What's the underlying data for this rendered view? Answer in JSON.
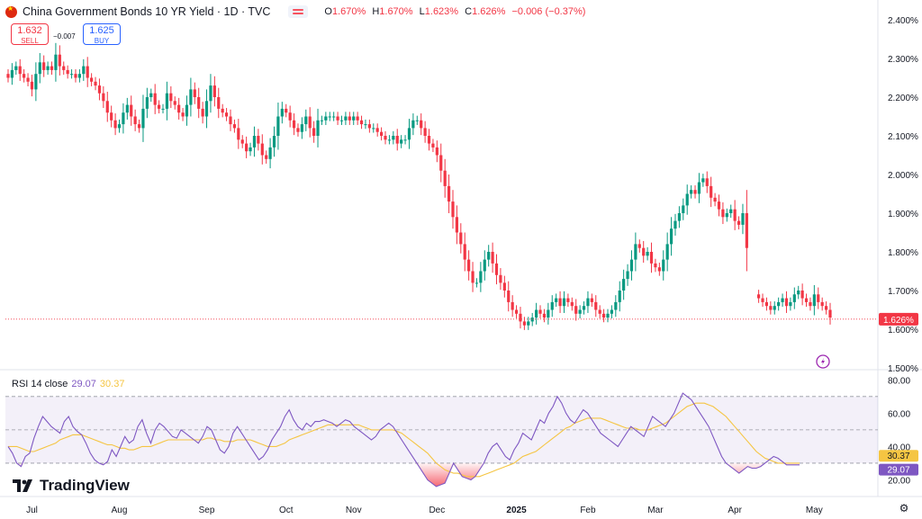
{
  "header": {
    "title": "China Government Bonds 10 YR Yield · 1D · TVC",
    "open_label": "O",
    "open": "1.670%",
    "high_label": "H",
    "high": "1.670%",
    "low_label": "L",
    "low": "1.623%",
    "close_label": "C",
    "close": "1.626%",
    "change": "−0.006 (−0.37%)"
  },
  "trade": {
    "sell_price": "1.632",
    "sell_label": "SELL",
    "buy_price": "1.625",
    "buy_label": "BUY",
    "spread": "−0.007"
  },
  "rsi_legend": {
    "label": "RSI 14 close",
    "rsi": "29.07",
    "ma": "30.37"
  },
  "branding": {
    "name": "TradingView"
  },
  "colors": {
    "up": "#089981",
    "down": "#f23645",
    "rsi": "#7e57c2",
    "rsi_ma": "#f5c542",
    "price_line": "#f23645"
  },
  "chart_data": [
    {
      "type": "candlestick",
      "title": "China Government Bonds 10 YR Yield",
      "ylim": [
        1.5,
        2.4
      ],
      "y_ticks": [
        "2.400%",
        "2.300%",
        "2.200%",
        "2.100%",
        "2.000%",
        "1.900%",
        "1.800%",
        "1.700%",
        "1.600%",
        "1.500%"
      ],
      "x_ticks": [
        {
          "label": "Jul",
          "index": 6
        },
        {
          "label": "Aug",
          "index": 28
        },
        {
          "label": "Sep",
          "index": 50
        },
        {
          "label": "Oct",
          "index": 70
        },
        {
          "label": "Nov",
          "index": 87
        },
        {
          "label": "Dec",
          "index": 108
        },
        {
          "label": "2025",
          "index": 128
        },
        {
          "label": "Feb",
          "index": 146
        },
        {
          "label": "Mar",
          "index": 163
        },
        {
          "label": "Apr",
          "index": 183
        },
        {
          "label": "May",
          "index": 203
        }
      ],
      "last_price": "1.626%",
      "close": [
        2.25,
        2.27,
        2.28,
        2.26,
        2.25,
        2.24,
        2.22,
        2.26,
        2.29,
        2.27,
        2.28,
        2.27,
        2.31,
        2.28,
        2.27,
        2.26,
        2.26,
        2.25,
        2.26,
        2.28,
        2.25,
        2.24,
        2.23,
        2.21,
        2.19,
        2.16,
        2.14,
        2.12,
        2.13,
        2.16,
        2.18,
        2.15,
        2.13,
        2.12,
        2.17,
        2.2,
        2.21,
        2.18,
        2.17,
        2.17,
        2.21,
        2.19,
        2.18,
        2.16,
        2.15,
        2.18,
        2.22,
        2.2,
        2.17,
        2.15,
        2.19,
        2.23,
        2.2,
        2.17,
        2.16,
        2.15,
        2.13,
        2.12,
        2.09,
        2.08,
        2.06,
        2.07,
        2.1,
        2.08,
        2.05,
        2.04,
        2.07,
        2.1,
        2.15,
        2.17,
        2.16,
        2.14,
        2.12,
        2.11,
        2.13,
        2.15,
        2.12,
        2.1,
        2.14,
        2.14,
        2.15,
        2.15,
        2.15,
        2.14,
        2.14,
        2.15,
        2.14,
        2.15,
        2.14,
        2.13,
        2.13,
        2.12,
        2.12,
        2.11,
        2.1,
        2.09,
        2.09,
        2.1,
        2.08,
        2.09,
        2.09,
        2.12,
        2.14,
        2.14,
        2.12,
        2.1,
        2.08,
        2.07,
        2.05,
        2.01,
        1.97,
        1.93,
        1.89,
        1.85,
        1.82,
        1.78,
        1.75,
        1.72,
        1.72,
        1.75,
        1.78,
        1.8,
        1.77,
        1.74,
        1.72,
        1.7,
        1.67,
        1.65,
        1.64,
        1.62,
        1.61,
        1.62,
        1.63,
        1.65,
        1.64,
        1.63,
        1.65,
        1.67,
        1.68,
        1.66,
        1.68,
        1.67,
        1.66,
        1.64,
        1.65,
        1.66,
        1.68,
        1.67,
        1.65,
        1.64,
        1.63,
        1.64,
        1.65,
        1.67,
        1.7,
        1.73,
        1.75,
        1.78,
        1.82,
        1.81,
        1.79,
        1.8,
        1.77,
        1.76,
        1.75,
        1.78,
        1.82,
        1.86,
        1.88,
        1.9,
        1.92,
        1.95,
        1.96,
        1.95,
        1.98,
        1.99,
        1.97,
        1.94,
        1.93,
        1.91,
        1.89,
        1.9,
        1.91,
        1.88,
        1.87,
        1.9,
        1.81,
        null,
        null,
        1.68,
        1.67,
        1.66,
        1.65,
        1.66,
        1.67,
        1.68,
        1.66,
        1.67,
        1.69,
        1.7,
        1.68,
        1.67,
        1.66,
        1.69,
        1.67,
        1.66,
        1.65,
        1.63
      ]
    },
    {
      "type": "line",
      "title": "RSI 14 close",
      "ylim": [
        10,
        85
      ],
      "y_ticks": [
        "80.00",
        "60.00",
        "40.00",
        "20.00"
      ],
      "bands": {
        "upper": 70,
        "middle": 50,
        "lower": 30
      },
      "series": [
        {
          "name": "RSI",
          "values": [
            40,
            36,
            30,
            28,
            34,
            36,
            45,
            52,
            58,
            55,
            52,
            50,
            48,
            55,
            58,
            52,
            49,
            47,
            42,
            36,
            32,
            30,
            29,
            31,
            38,
            34,
            40,
            46,
            42,
            44,
            52,
            56,
            48,
            42,
            50,
            54,
            52,
            49,
            46,
            45,
            50,
            48,
            46,
            44,
            42,
            46,
            52,
            50,
            44,
            38,
            36,
            40,
            48,
            52,
            48,
            44,
            40,
            36,
            32,
            34,
            38,
            44,
            48,
            52,
            58,
            62,
            56,
            52,
            50,
            54,
            52,
            55,
            55,
            56,
            55,
            54,
            52,
            54,
            56,
            55,
            52,
            50,
            48,
            46,
            44,
            46,
            50,
            52,
            54,
            52,
            48,
            44,
            40,
            36,
            32,
            28,
            24,
            20,
            18,
            16,
            17,
            18,
            24,
            30,
            26,
            22,
            21,
            20,
            22,
            26,
            30,
            36,
            40,
            42,
            38,
            34,
            32,
            38,
            42,
            48,
            46,
            44,
            50,
            56,
            54,
            60,
            64,
            70,
            66,
            60,
            56,
            54,
            58,
            62,
            60,
            56,
            52,
            48,
            46,
            44,
            42,
            40,
            44,
            48,
            52,
            50,
            48,
            46,
            52,
            58,
            56,
            54,
            52,
            56,
            60,
            66,
            72,
            70,
            68,
            64,
            60,
            56,
            52,
            46,
            40,
            34,
            30,
            28,
            26,
            24,
            26,
            28,
            27,
            27,
            28,
            30,
            32,
            34,
            33,
            31,
            29,
            29,
            29,
            29
          ]
        },
        {
          "name": "MA",
          "values": [
            40,
            40,
            40,
            39,
            38,
            37,
            37,
            38,
            39,
            40,
            41,
            42,
            44,
            45,
            46,
            47,
            47,
            47,
            46,
            45,
            44,
            43,
            42,
            41,
            41,
            40,
            39,
            39,
            38,
            38,
            39,
            40,
            40,
            40,
            41,
            42,
            43,
            44,
            44,
            44,
            44,
            44,
            44,
            44,
            44,
            44,
            45,
            45,
            44,
            44,
            43,
            43,
            43,
            44,
            44,
            44,
            44,
            43,
            42,
            41,
            40,
            40,
            40,
            41,
            42,
            44,
            45,
            46,
            47,
            48,
            49,
            50,
            51,
            52,
            53,
            53,
            53,
            53,
            53,
            53,
            53,
            53,
            52,
            51,
            50,
            50,
            50,
            50,
            50,
            50,
            49,
            48,
            46,
            44,
            42,
            40,
            38,
            36,
            33,
            30,
            28,
            26,
            25,
            24,
            24,
            23,
            22,
            22,
            22,
            22,
            23,
            24,
            25,
            26,
            27,
            28,
            29,
            30,
            32,
            34,
            35,
            36,
            37,
            39,
            41,
            43,
            45,
            47,
            49,
            51,
            52,
            54,
            55,
            56,
            57,
            57,
            57,
            57,
            56,
            55,
            54,
            53,
            52,
            51,
            51,
            51,
            50,
            50,
            50,
            51,
            52,
            53,
            54,
            56,
            58,
            60,
            62,
            64,
            65,
            66,
            66,
            66,
            65,
            64,
            62,
            60,
            58,
            55,
            52,
            49,
            46,
            43,
            40,
            37,
            35,
            33,
            32,
            31,
            30,
            30,
            30,
            30,
            30,
            30
          ]
        }
      ],
      "last_rsi": "29.07",
      "last_ma": "30.37"
    }
  ]
}
